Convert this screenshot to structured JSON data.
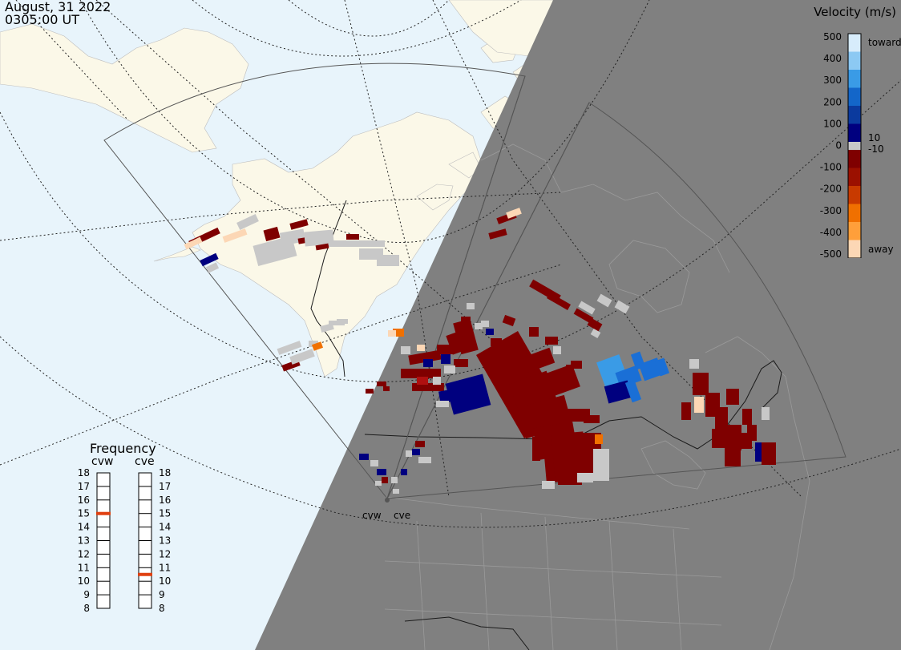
{
  "header": {
    "date": "August, 31 2022",
    "time": "0305:00 UT"
  },
  "velocity_scale": {
    "title": "Velocity (m/s)",
    "ticks": [
      "500",
      "400",
      "300",
      "200",
      "100",
      "0",
      "-100",
      "-200",
      "-300",
      "-400",
      "-500"
    ],
    "extra_labels": {
      "toward": "toward",
      "away": "away",
      "pos_min": "10",
      "neg_min": "-10"
    },
    "colors": [
      "#d7ecfb",
      "#8cc9f3",
      "#3a9be6",
      "#1366c9",
      "#0b3a9e",
      "#00007f",
      "#7f0000",
      "#9b1000",
      "#c83a00",
      "#f07000",
      "#ff9f3a",
      "#fcd7b5"
    ]
  },
  "frequency": {
    "title": "Frequency",
    "radars": [
      {
        "name": "cvw",
        "value": 15
      },
      {
        "name": "cve",
        "value": 10.5
      }
    ],
    "levels": [
      "18",
      "17",
      "16",
      "15",
      "14",
      "13",
      "12",
      "11",
      "10",
      "9",
      "8"
    ],
    "marker_color": "#e04010"
  },
  "radar_sites": [
    {
      "name": "cvw"
    },
    {
      "name": "cve"
    }
  ],
  "colors": {
    "ocean": "#e8f4fb",
    "land": "#fbf8e8",
    "night": "#808080",
    "ground_scatter": "#c8c8c8"
  }
}
